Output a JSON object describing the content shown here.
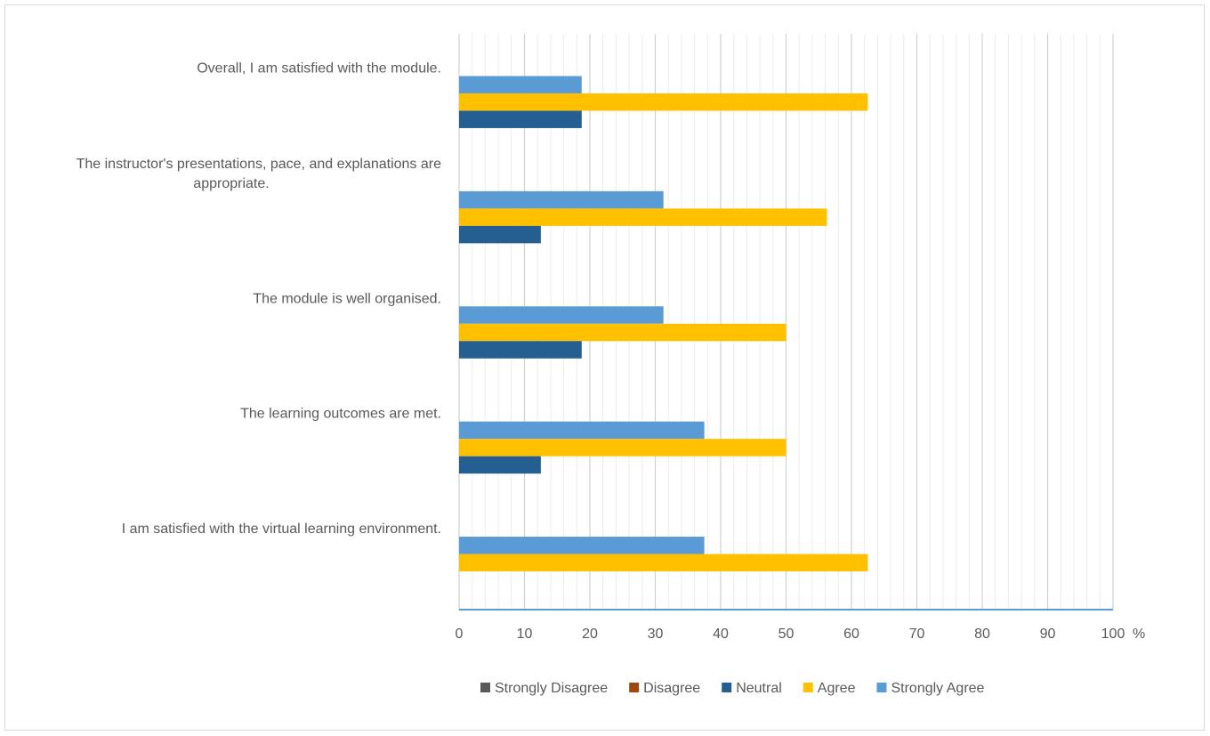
{
  "chart_data": {
    "type": "bar",
    "orientation": "horizontal",
    "title": "",
    "xlabel": "",
    "ylabel": "",
    "x_unit": "%",
    "xlim": [
      0,
      100
    ],
    "major_ticks": [
      0,
      10,
      20,
      30,
      40,
      50,
      60,
      70,
      80,
      90,
      100
    ],
    "minor_tick_step": 2,
    "grid": true,
    "legend_position": "bottom",
    "categories": [
      [
        "Overall, I am satisfied with the module."
      ],
      [
        "The instructor's presentations, pace, and explanations are",
        "appropriate."
      ],
      [
        "The module is well organised."
      ],
      [
        "The learning outcomes are met."
      ],
      [
        "I am satisfied with the virtual learning environment."
      ]
    ],
    "series": [
      {
        "name": "Strongly Disagree",
        "color": "#595959",
        "values": [
          0,
          0,
          0,
          0,
          0
        ]
      },
      {
        "name": "Disagree",
        "color": "#9e480e",
        "values": [
          0,
          0,
          0,
          0,
          0
        ]
      },
      {
        "name": "Neutral",
        "color": "#255e91",
        "values": [
          18.75,
          12.5,
          18.75,
          12.5,
          0
        ]
      },
      {
        "name": "Agree",
        "color": "#ffc000",
        "values": [
          62.5,
          56.25,
          50,
          50,
          62.5
        ]
      },
      {
        "name": "Strongly Agree",
        "color": "#5b9bd5",
        "values": [
          18.75,
          31.25,
          31.25,
          37.5,
          37.5
        ]
      }
    ]
  }
}
